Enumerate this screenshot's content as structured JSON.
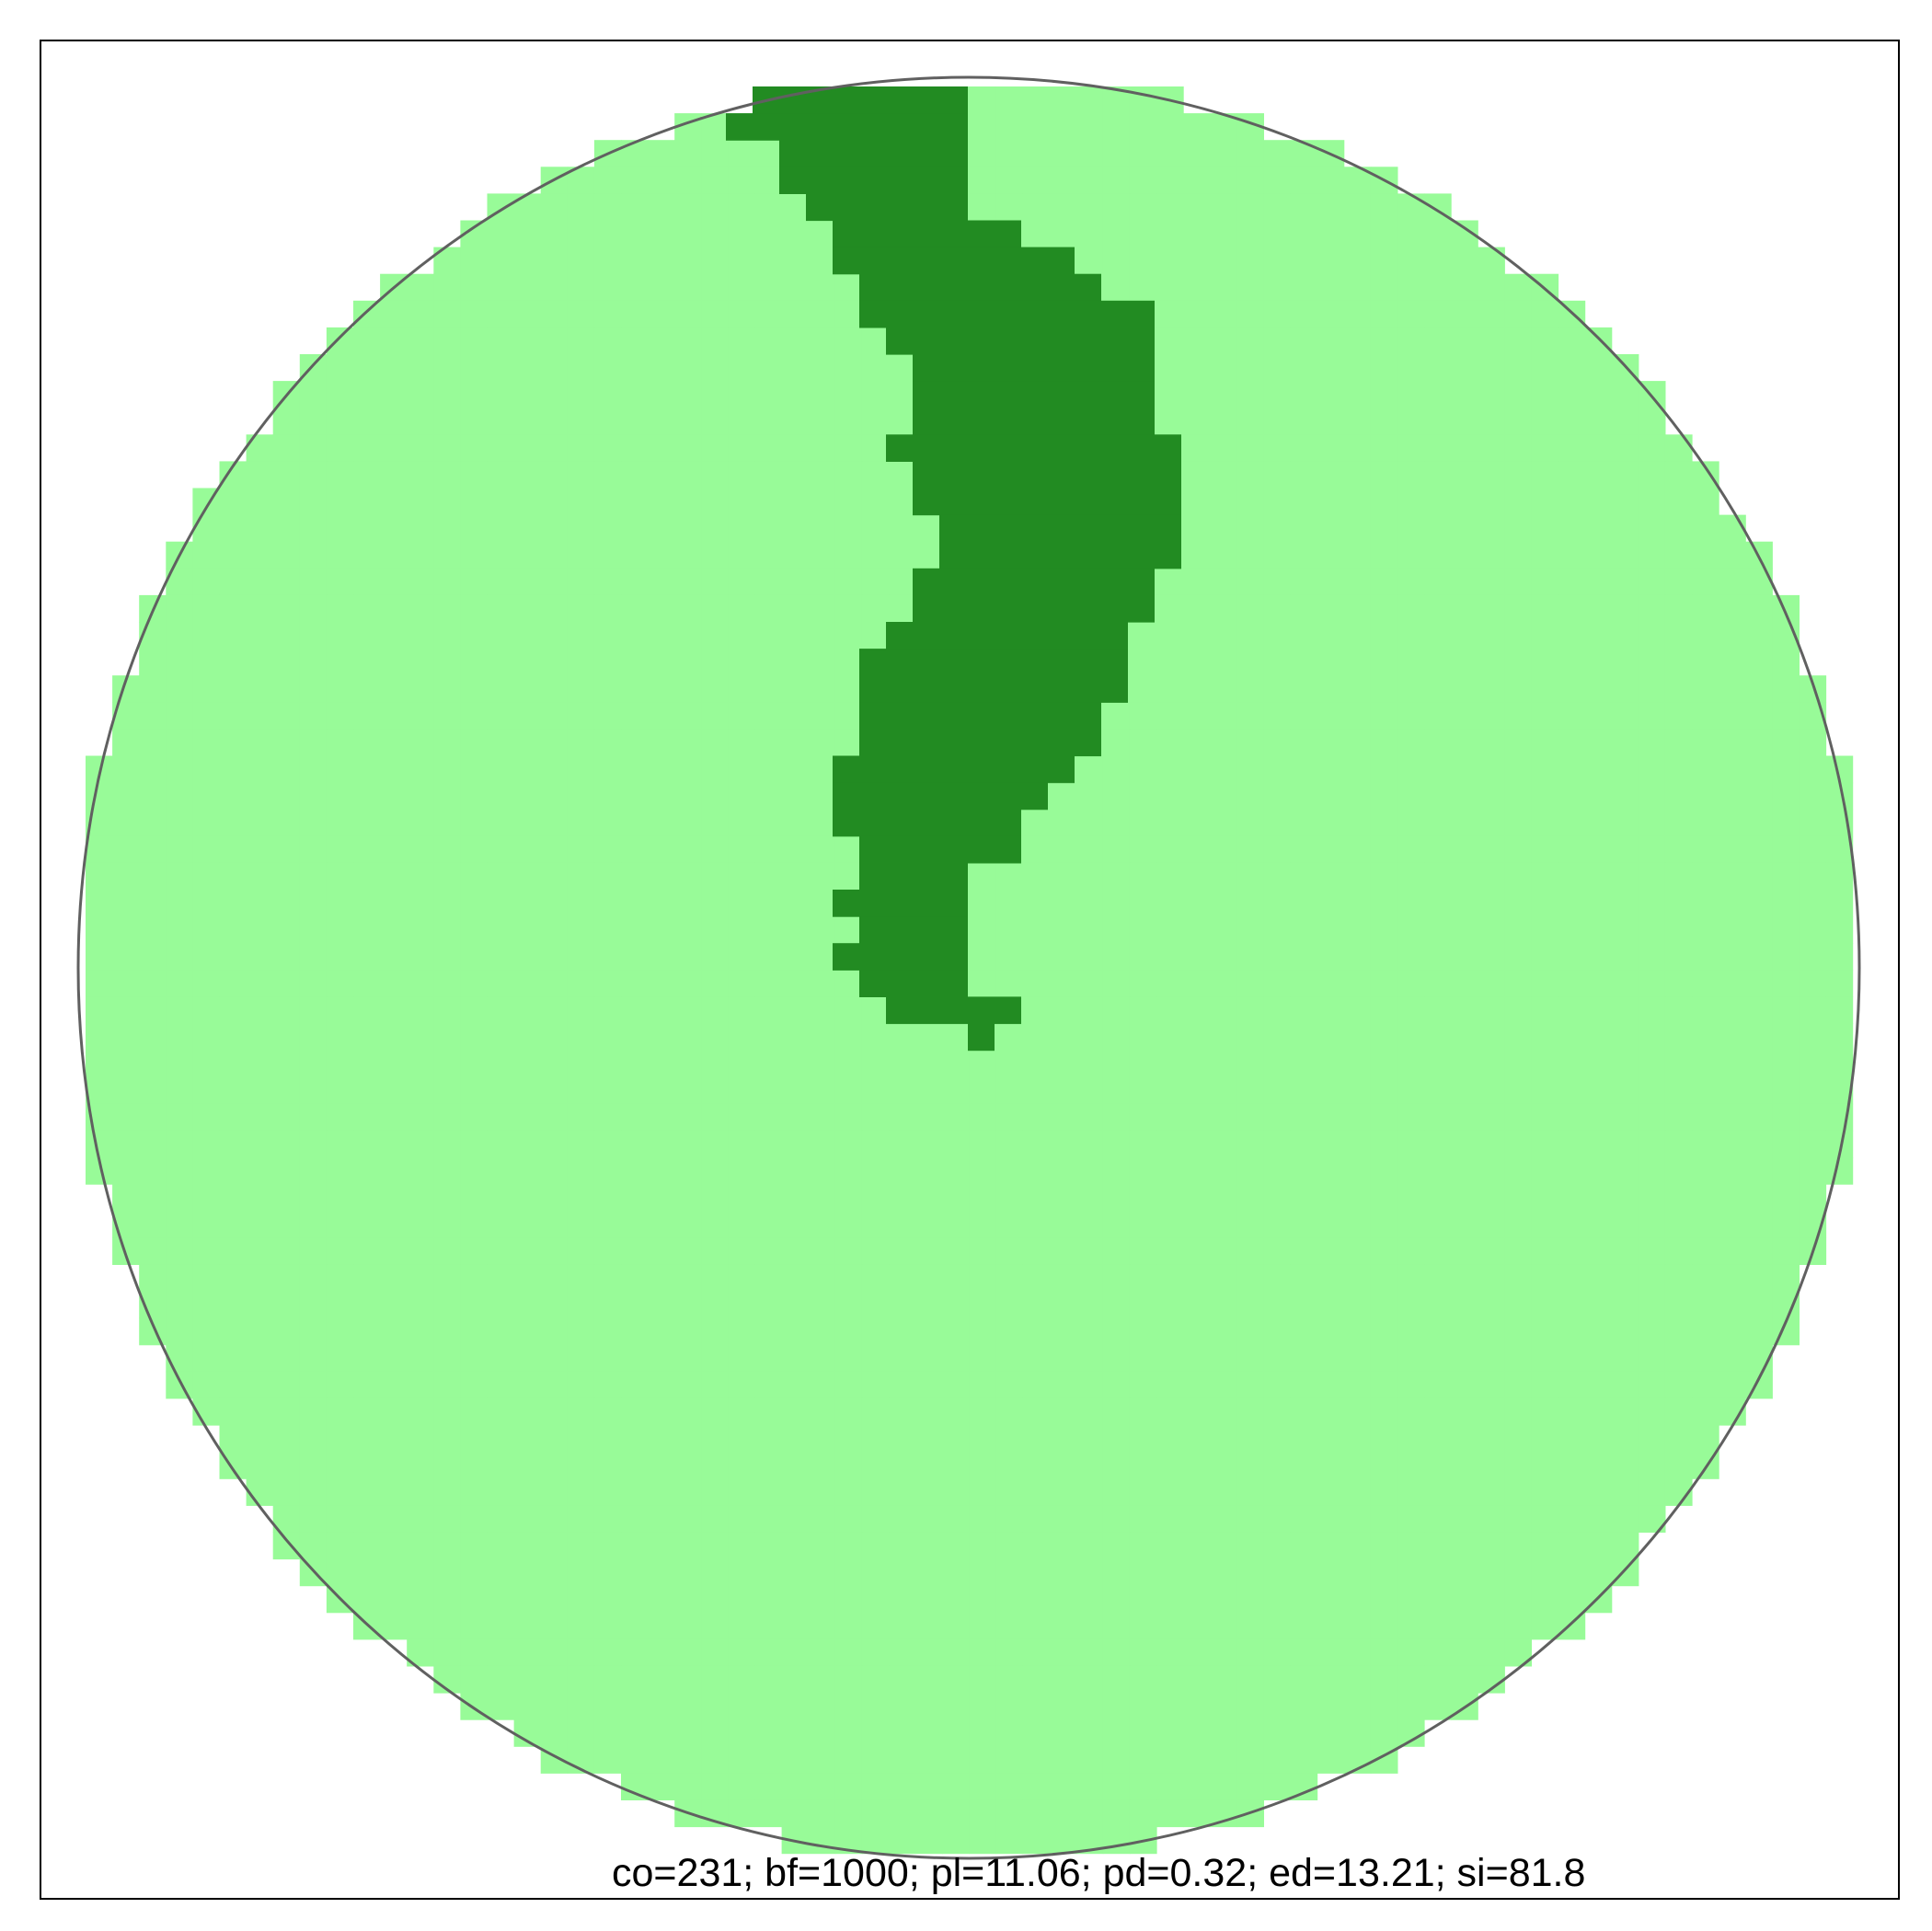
{
  "colors": {
    "background": "#ffffff",
    "light_area": "#98fb98",
    "dark_area": "#228b22",
    "outline": "#606060",
    "frame": "#000000"
  },
  "caption": "co=231; bf=1000; pl=11.06; pd=0.32; ed=13.21; si=81.8"
}
